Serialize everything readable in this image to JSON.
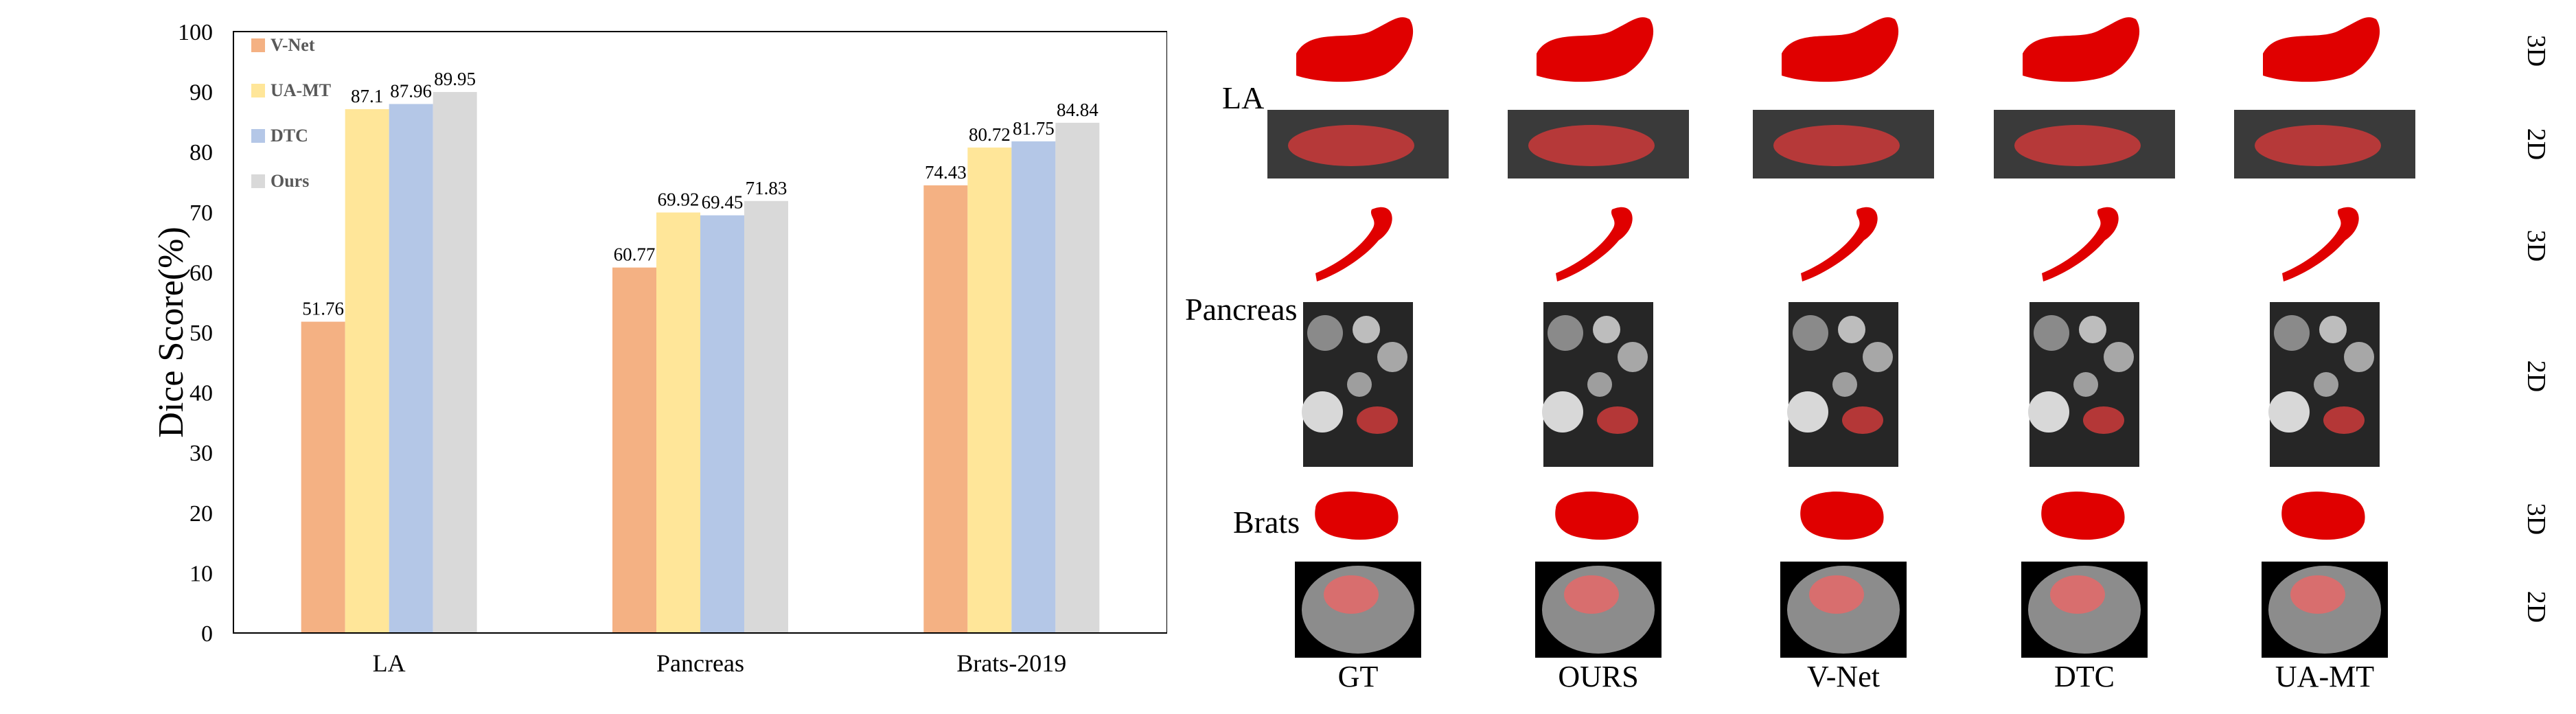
{
  "chart_data": {
    "type": "bar",
    "categories": [
      "LA",
      "Pancreas",
      "Brats-2019"
    ],
    "series": [
      {
        "name": "V-Net",
        "values": [
          51.76,
          60.77,
          74.43
        ],
        "color": "#F4B183"
      },
      {
        "name": "UA-MT",
        "values": [
          87.1,
          69.92,
          80.72
        ],
        "color": "#FFE699"
      },
      {
        "name": "DTC",
        "values": [
          87.96,
          69.45,
          81.75
        ],
        "color": "#B4C7E7"
      },
      {
        "name": "Ours",
        "values": [
          89.95,
          71.83,
          84.84
        ],
        "color": "#D9D9D9"
      }
    ],
    "data_labels": [
      [
        "51.76",
        "60.77",
        "74.43"
      ],
      [
        "87.1",
        "69.92",
        "80.72"
      ],
      [
        "87.96",
        "69.45",
        "81.75"
      ],
      [
        "89.95",
        "71.83",
        "84.84"
      ]
    ],
    "title": "",
    "xlabel": "",
    "ylabel": "Dice Score(%)",
    "ylim": [
      0,
      100
    ],
    "yticks": [
      "0",
      "10",
      "20",
      "30",
      "40",
      "50",
      "60",
      "70",
      "80",
      "90",
      "100"
    ],
    "legend_position": "top-left",
    "grid": false
  },
  "visual_panel": {
    "row_labels": [
      "LA",
      "Pancreas",
      "Brats"
    ],
    "dim_labels": [
      "3D",
      "2D",
      "3D",
      "2D",
      "3D",
      "2D"
    ],
    "column_labels": [
      "GT",
      "OURS",
      "V-Net",
      "DTC",
      "UA-MT"
    ],
    "segmentation_color": "#E00000"
  }
}
